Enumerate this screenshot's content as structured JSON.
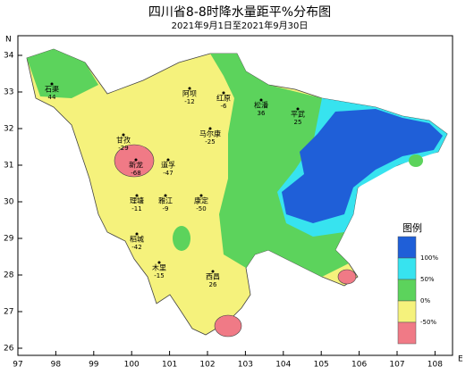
{
  "title": "四川省8-8时降水量距平%分布图",
  "subtitle": "2021年9月1日至2021年9月30日",
  "axes": {
    "lon_ticks": [
      97,
      98,
      99,
      100,
      101,
      102,
      103,
      104,
      105,
      106,
      107,
      108
    ],
    "lat_ticks": [
      26,
      27,
      28,
      29,
      30,
      31,
      32,
      33,
      34
    ],
    "lon_letter": "E",
    "lat_letter": "N"
  },
  "legend": {
    "title": "图例",
    "items": [
      {
        "label": "100%",
        "color": "#1f5fd8"
      },
      {
        "label": "50%",
        "color": "#37e3ef"
      },
      {
        "label": "0%",
        "color": "#5cd35c"
      },
      {
        "label": "-50%",
        "color": "#f5f27c"
      }
    ],
    "bottom_color": "#f07a86"
  },
  "stations": [
    {
      "name": "石渠",
      "value": 44
    },
    {
      "name": "甘孜",
      "value": -29
    },
    {
      "name": "新龙",
      "value": -68
    },
    {
      "name": "道孚",
      "value": -47
    },
    {
      "name": "阿坝",
      "value": -12
    },
    {
      "name": "红原",
      "value": -6
    },
    {
      "name": "松潘",
      "value": 36
    },
    {
      "name": "马尔康",
      "value": -25
    },
    {
      "name": "理塘",
      "value": -11
    },
    {
      "name": "雅江",
      "value": -9
    },
    {
      "name": "康定",
      "value": -50
    },
    {
      "name": "稻城",
      "value": -42
    },
    {
      "name": "木里",
      "value": -15
    },
    {
      "name": "西昌",
      "value": 26
    },
    {
      "name": "平武",
      "value": 25
    }
  ]
}
